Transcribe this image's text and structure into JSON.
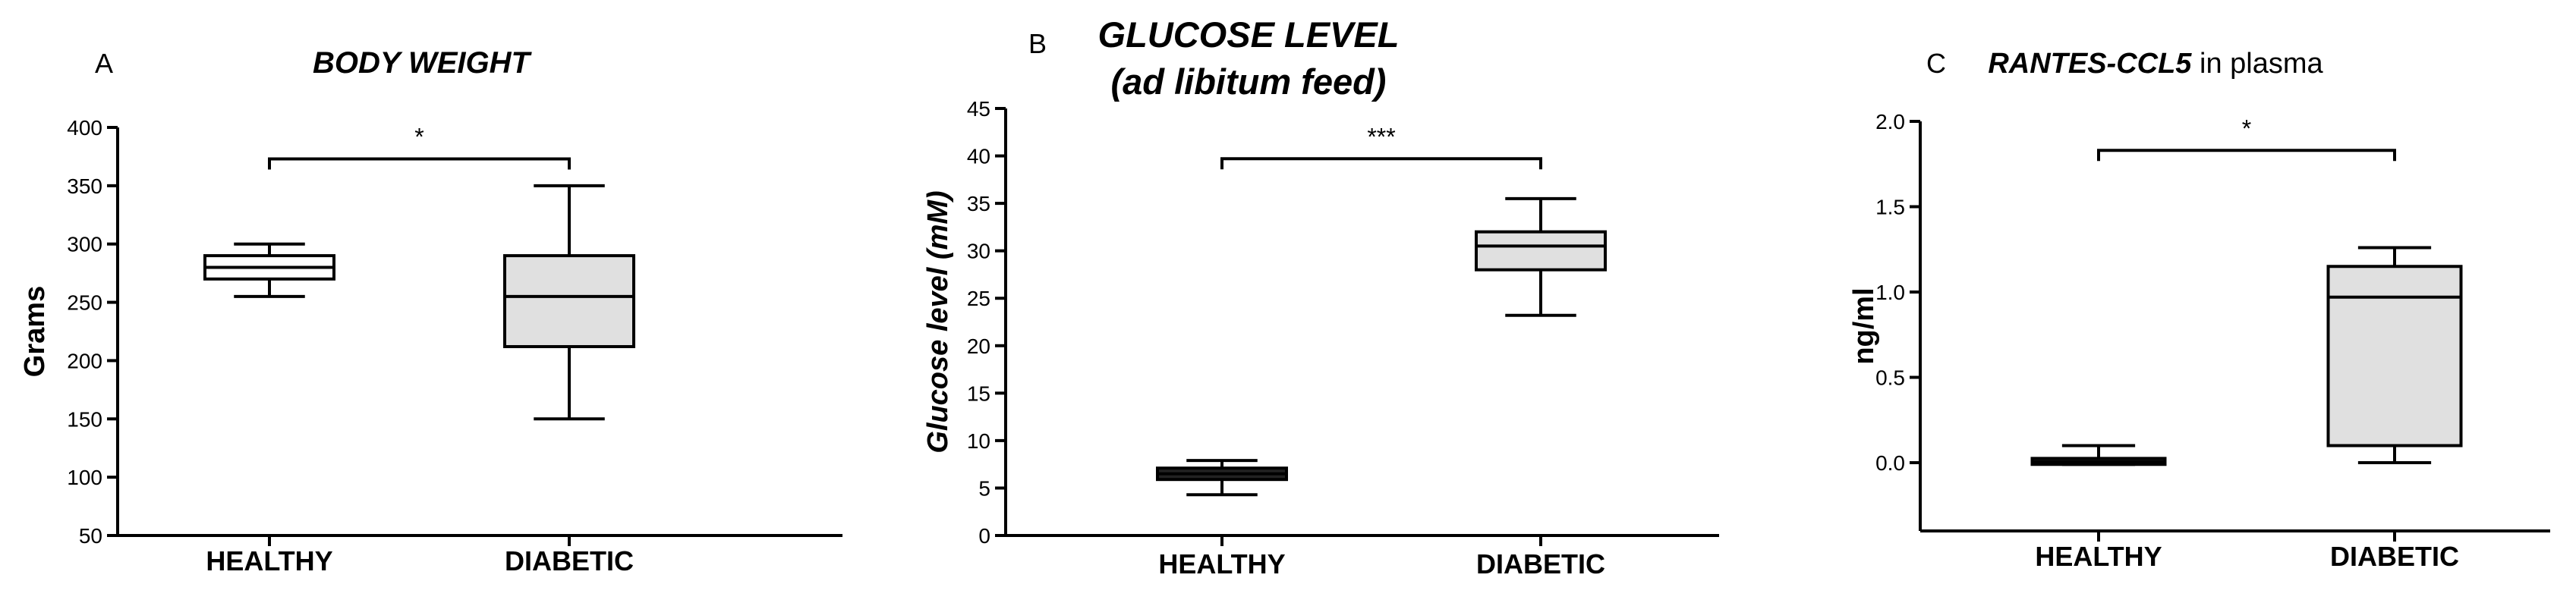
{
  "chart_data": [
    {
      "type": "box",
      "panel_letter": "A",
      "title": "BODY WEIGHT",
      "title_line2": "",
      "title_suffix": "",
      "ylabel": "Grams",
      "ylim": [
        50,
        400
      ],
      "yticks": [
        50,
        100,
        150,
        200,
        250,
        300,
        350,
        400
      ],
      "ytick_labels": [
        "50",
        "100",
        "150",
        "200",
        "250",
        "300",
        "350",
        "400"
      ],
      "categories": [
        "HEALTHY",
        "DIABETIC"
      ],
      "boxes": [
        {
          "min": 255,
          "q1": 270,
          "median": 280,
          "q3": 290,
          "max": 300,
          "fill": "#ffffff"
        },
        {
          "min": 150,
          "q1": 212,
          "median": 255,
          "q3": 290,
          "max": 350,
          "fill": "#e0e0e0"
        }
      ],
      "bracket": {
        "y": 373,
        "label": "*"
      }
    },
    {
      "type": "box",
      "panel_letter": "B",
      "title": "GLUCOSE LEVEL",
      "title_line2": "(ad libitum feed)",
      "title_suffix": "",
      "ylabel": "Glucose level (mM)",
      "ylim": [
        0,
        45
      ],
      "yticks": [
        0,
        5,
        10,
        15,
        20,
        25,
        30,
        35,
        40,
        45
      ],
      "ytick_labels": [
        "0",
        "5",
        "10",
        "15",
        "20",
        "25",
        "30",
        "35",
        "40",
        "45"
      ],
      "categories": [
        "HEALTHY",
        "DIABETIC"
      ],
      "boxes": [
        {
          "min": 4.3,
          "q1": 5.9,
          "median": 6.5,
          "q3": 7.1,
          "max": 7.9,
          "fill": "#222222"
        },
        {
          "min": 23.2,
          "q1": 28.0,
          "median": 30.5,
          "q3": 32.0,
          "max": 35.5,
          "fill": "#e0e0e0"
        }
      ],
      "bracket": {
        "y": 39.7,
        "label": "***"
      }
    },
    {
      "type": "box",
      "panel_letter": "C",
      "title": "RANTES-CCL5",
      "title_line2": "",
      "title_suffix": " in plasma",
      "ylabel": "ng/ml",
      "ylim": [
        -0.4,
        2.0
      ],
      "yticks": [
        0.0,
        0.5,
        1.0,
        1.5,
        2.0
      ],
      "ytick_labels": [
        "0.0",
        "0.5",
        "1.0",
        "1.5",
        "2.0"
      ],
      "categories": [
        "HEALTHY",
        "DIABETIC"
      ],
      "boxes": [
        {
          "min": -0.01,
          "q1": -0.01,
          "median": 0.005,
          "q3": 0.025,
          "max": 0.1,
          "fill": "#222222"
        },
        {
          "min": 0.0,
          "q1": 0.1,
          "median": 0.97,
          "q3": 1.15,
          "max": 1.26,
          "fill": "#e0e0e0"
        }
      ],
      "bracket": {
        "y": 1.83,
        "label": "*"
      }
    }
  ]
}
